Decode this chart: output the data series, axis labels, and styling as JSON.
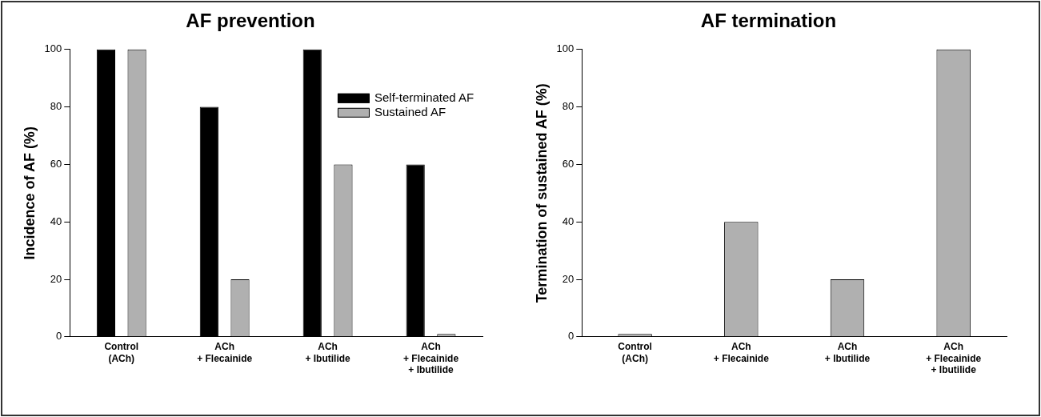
{
  "chart_data": [
    {
      "type": "bar",
      "title": "AF prevention",
      "ylabel": "Incidence of AF (%)",
      "categories": [
        "Control\n(ACh)",
        "ACh\n+ Flecainide",
        "ACh\n+ Ibutilide",
        "ACh\n+ Flecainide\n+ Ibutilide"
      ],
      "series": [
        {
          "name": "Self-terminated AF",
          "color": "#000000",
          "values": [
            100,
            80,
            100,
            60
          ]
        },
        {
          "name": "Sustained AF",
          "color": "#b0b0b0",
          "values": [
            100,
            20,
            60,
            1
          ]
        }
      ],
      "ylim": [
        0,
        100
      ],
      "yticks": [
        0,
        20,
        40,
        60,
        80,
        100
      ],
      "grid": false,
      "legend": "top right"
    },
    {
      "type": "bar",
      "title": "AF termination",
      "ylabel": "Termination of sustained AF (%)",
      "categories": [
        "Control\n(ACh)",
        "ACh\n+ Flecainide",
        "ACh\n+ Ibutilide",
        "ACh\n+ Flecainide\n+ Ibutilide"
      ],
      "series": [
        {
          "color": "#b0b0b0",
          "values": [
            1,
            40,
            20,
            100
          ]
        }
      ],
      "ylim": [
        0,
        100
      ],
      "yticks": [
        0,
        20,
        40,
        60,
        80,
        100
      ],
      "grid": false,
      "legend": false
    }
  ]
}
